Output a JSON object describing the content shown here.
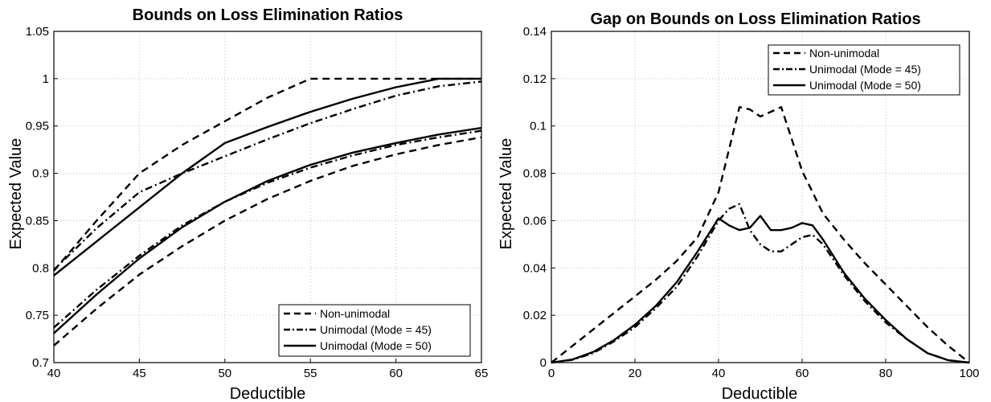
{
  "chart_data": [
    {
      "type": "line",
      "title": "Bounds on Loss Elimination Ratios",
      "xlabel": "Deductible",
      "ylabel": "Expected Value",
      "xlim": [
        40,
        65
      ],
      "ylim": [
        0.7,
        1.05
      ],
      "xticks": [
        40,
        45,
        50,
        55,
        60,
        65
      ],
      "xtick_labels": [
        "40",
        "45",
        "50",
        "55",
        "60",
        "65"
      ],
      "yticks": [
        0.7,
        0.75,
        0.8,
        0.85,
        0.9,
        0.95,
        1.0,
        1.05
      ],
      "ytick_labels": [
        "0.7",
        "0.75",
        "0.8",
        "0.85",
        "0.9",
        "0.95",
        "1",
        "1.05"
      ],
      "grid": true,
      "legend_position": "bottom-right",
      "legend": [
        "Non-unimodal",
        "Unimodal (Mode = 45)",
        "Unimodal (Mode = 50)"
      ],
      "series": [
        {
          "name": "Non-unimodal",
          "style": "dashed",
          "x": [
            40,
            42.5,
            45,
            47.5,
            50,
            52.5,
            55,
            57.5,
            60,
            62.5,
            65
          ],
          "values": [
            0.797,
            0.85,
            0.9,
            0.93,
            0.955,
            0.98,
            1.0,
            1.0,
            1.0,
            1.0,
            1.0
          ]
        },
        {
          "name": "Non-unimodal",
          "style": "dashed",
          "x": [
            40,
            42.5,
            45,
            47.5,
            50,
            52.5,
            55,
            57.5,
            60,
            62.5,
            65
          ],
          "values": [
            0.718,
            0.757,
            0.793,
            0.823,
            0.85,
            0.873,
            0.892,
            0.908,
            0.92,
            0.93,
            0.938
          ]
        },
        {
          "name": "Unimodal (Mode = 45)",
          "style": "dashdot",
          "x": [
            40,
            42.5,
            45,
            47.5,
            50,
            52.5,
            55,
            57.5,
            60,
            62.5,
            65
          ],
          "values": [
            0.798,
            0.842,
            0.88,
            0.9,
            0.918,
            0.936,
            0.953,
            0.968,
            0.982,
            0.992,
            0.997
          ]
        },
        {
          "name": "Unimodal (Mode = 45)",
          "style": "dashdot",
          "x": [
            40,
            42.5,
            45,
            47.5,
            50,
            52.5,
            55,
            57.5,
            60,
            62.5,
            65
          ],
          "values": [
            0.737,
            0.777,
            0.813,
            0.845,
            0.87,
            0.89,
            0.906,
            0.919,
            0.93,
            0.938,
            0.945
          ]
        },
        {
          "name": "Unimodal (Mode = 50)",
          "style": "solid",
          "x": [
            40,
            42.5,
            45,
            47.5,
            50,
            52.5,
            55,
            57.5,
            60,
            62.5,
            65
          ],
          "values": [
            0.792,
            0.828,
            0.864,
            0.9,
            0.932,
            0.949,
            0.965,
            0.979,
            0.991,
            1.0,
            1.0
          ]
        },
        {
          "name": "Unimodal (Mode = 50)",
          "style": "solid",
          "x": [
            40,
            42.5,
            45,
            47.5,
            50,
            52.5,
            55,
            57.5,
            60,
            62.5,
            65
          ],
          "values": [
            0.731,
            0.772,
            0.81,
            0.843,
            0.87,
            0.892,
            0.909,
            0.922,
            0.932,
            0.941,
            0.948
          ]
        }
      ]
    },
    {
      "type": "line",
      "title": "Gap on Bounds on Loss Elimination Ratios",
      "xlabel": "Deductible",
      "ylabel": "Expected Value",
      "xlim": [
        0,
        100
      ],
      "ylim": [
        0,
        0.14
      ],
      "xticks": [
        0,
        20,
        40,
        60,
        80,
        100
      ],
      "xtick_labels": [
        "0",
        "20",
        "40",
        "60",
        "80",
        "100"
      ],
      "yticks": [
        0,
        0.02,
        0.04,
        0.06,
        0.08,
        0.1,
        0.12,
        0.14
      ],
      "ytick_labels": [
        "0",
        "0.02",
        "0.04",
        "0.06",
        "0.08",
        "0.1",
        "0.12",
        "0.14"
      ],
      "grid": true,
      "legend_position": "top-right",
      "legend": [
        "Non-unimodal",
        "Unimodal (Mode = 45)",
        "Unimodal (Mode = 50)"
      ],
      "series": [
        {
          "name": "Non-unimodal",
          "style": "dashed",
          "x": [
            0,
            5,
            10,
            15,
            20,
            25,
            30,
            35,
            40,
            45,
            47.5,
            50,
            52.5,
            55,
            60,
            65,
            70,
            75,
            80,
            85,
            90,
            95,
            100
          ],
          "values": [
            0,
            0.007,
            0.014,
            0.021,
            0.028,
            0.035,
            0.043,
            0.053,
            0.072,
            0.108,
            0.107,
            0.104,
            0.106,
            0.108,
            0.081,
            0.063,
            0.052,
            0.042,
            0.033,
            0.024,
            0.015,
            0.007,
            0
          ]
        },
        {
          "name": "Unimodal (Mode = 45)",
          "style": "dashdot",
          "x": [
            0,
            5,
            10,
            15,
            20,
            25,
            30,
            35,
            40,
            42.5,
            45,
            47.5,
            50,
            52.5,
            55,
            57.5,
            60,
            62.5,
            65,
            70,
            75,
            80,
            85,
            90,
            95,
            100
          ],
          "values": [
            0,
            0.0012,
            0.004,
            0.009,
            0.015,
            0.023,
            0.032,
            0.045,
            0.06,
            0.065,
            0.067,
            0.056,
            0.05,
            0.047,
            0.047,
            0.05,
            0.053,
            0.054,
            0.05,
            0.037,
            0.026,
            0.017,
            0.01,
            0.004,
            0.001,
            0
          ]
        },
        {
          "name": "Unimodal (Mode = 50)",
          "style": "solid",
          "x": [
            0,
            5,
            10,
            15,
            20,
            25,
            30,
            35,
            40,
            42.5,
            45,
            47.5,
            50,
            52.5,
            55,
            57.5,
            60,
            62.5,
            65,
            70,
            75,
            80,
            85,
            90,
            95,
            100
          ],
          "values": [
            0,
            0.0013,
            0.0045,
            0.0095,
            0.016,
            0.024,
            0.034,
            0.047,
            0.061,
            0.058,
            0.056,
            0.057,
            0.062,
            0.056,
            0.056,
            0.057,
            0.059,
            0.058,
            0.052,
            0.038,
            0.027,
            0.018,
            0.01,
            0.004,
            0.001,
            0
          ]
        }
      ]
    }
  ]
}
